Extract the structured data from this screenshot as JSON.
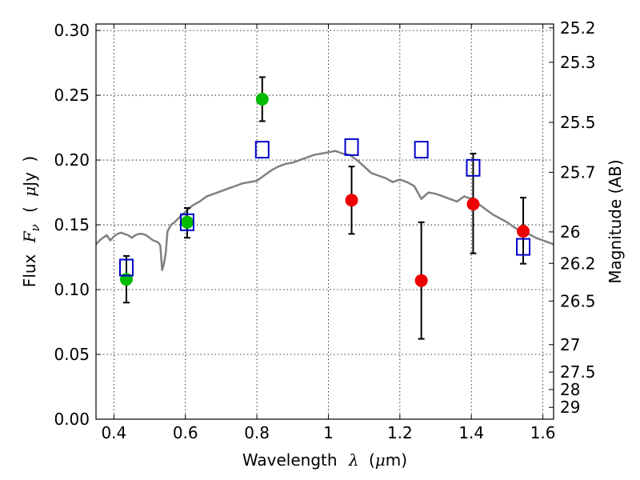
{
  "chart_data": {
    "type": "scatter",
    "xlabel": "Wavelength  λ (μm)",
    "ylabel": "Flux  F ν ( μJy )",
    "ylabel_parts": {
      "prefix": "Flux",
      "symbol": "F",
      "subscript": "ν",
      "open": "(",
      "mu": "μ",
      "unit": "Jy",
      "close": ")"
    },
    "xlabel_parts": {
      "prefix": "Wavelength",
      "symbol": "λ",
      "open": "(",
      "mu": "μ",
      "unit": "m)"
    },
    "y2label": "Magnitude (AB)",
    "xlim": [
      0.35,
      1.63
    ],
    "ylim": [
      0.0,
      0.305
    ],
    "grid": true,
    "x_ticks": [
      0.4,
      0.6,
      0.8,
      1.0,
      1.2,
      1.4,
      1.6
    ],
    "x_tick_labels": [
      "0.4",
      "0.6",
      "0.8",
      "1",
      "1.2",
      "1.4",
      "1.6"
    ],
    "y_ticks": [
      0.0,
      0.05,
      0.1,
      0.15,
      0.2,
      0.25,
      0.3
    ],
    "y_tick_labels": [
      "0.00",
      "0.05",
      "0.10",
      "0.15",
      "0.20",
      "0.25",
      "0.30"
    ],
    "right_ticks": [
      {
        "label": "25.2",
        "mag": 25.2
      },
      {
        "label": "25.3",
        "mag": 25.3
      },
      {
        "label": "25.5",
        "mag": 25.5
      },
      {
        "label": "25.7",
        "mag": 25.7
      },
      {
        "label": "26",
        "mag": 26.0
      },
      {
        "label": "26.2",
        "mag": 26.2
      },
      {
        "label": "26.5",
        "mag": 26.5
      },
      {
        "label": "27",
        "mag": 27.0
      },
      {
        "label": "27.5",
        "mag": 27.5
      },
      {
        "label": "28",
        "mag": 28.0
      },
      {
        "label": "29",
        "mag": 29.0
      }
    ],
    "colors": {
      "model": "#808080",
      "observed_optical": "#00bb00",
      "observed_nir": "#ee0000",
      "model_photometry": "#0000cc",
      "errorbar": "#000000"
    },
    "series": [
      {
        "type": "line",
        "color": "#808080",
        "x": [
          0.35,
          0.36,
          0.37,
          0.38,
          0.39,
          0.4,
          0.41,
          0.42,
          0.43,
          0.44,
          0.45,
          0.46,
          0.47,
          0.48,
          0.49,
          0.5,
          0.51,
          0.52,
          0.525,
          0.53,
          0.535,
          0.54,
          0.545,
          0.55,
          0.56,
          0.57,
          0.58,
          0.6,
          0.62,
          0.64,
          0.66,
          0.68,
          0.7,
          0.72,
          0.74,
          0.76,
          0.78,
          0.8,
          0.82,
          0.84,
          0.86,
          0.88,
          0.9,
          0.92,
          0.94,
          0.96,
          0.98,
          1.0,
          1.02,
          1.04,
          1.06,
          1.08,
          1.1,
          1.12,
          1.14,
          1.16,
          1.18,
          1.2,
          1.22,
          1.24,
          1.26,
          1.28,
          1.3,
          1.32,
          1.34,
          1.36,
          1.38,
          1.4,
          1.42,
          1.44,
          1.46,
          1.48,
          1.5,
          1.52,
          1.54,
          1.56,
          1.58,
          1.6,
          1.63
        ],
        "y": [
          0.135,
          0.138,
          0.14,
          0.142,
          0.138,
          0.141,
          0.143,
          0.144,
          0.143,
          0.142,
          0.14,
          0.142,
          0.143,
          0.143,
          0.142,
          0.14,
          0.138,
          0.137,
          0.136,
          0.134,
          0.115,
          0.12,
          0.128,
          0.145,
          0.15,
          0.152,
          0.155,
          0.16,
          0.165,
          0.168,
          0.172,
          0.174,
          0.176,
          0.178,
          0.18,
          0.182,
          0.183,
          0.184,
          0.188,
          0.192,
          0.195,
          0.197,
          0.198,
          0.2,
          0.202,
          0.204,
          0.205,
          0.206,
          0.207,
          0.205,
          0.204,
          0.2,
          0.195,
          0.19,
          0.188,
          0.186,
          0.183,
          0.185,
          0.183,
          0.18,
          0.17,
          0.175,
          0.174,
          0.172,
          0.17,
          0.168,
          0.172,
          0.17,
          0.166,
          0.162,
          0.158,
          0.155,
          0.152,
          0.148,
          0.145,
          0.143,
          0.14,
          0.138,
          0.135
        ]
      },
      {
        "type": "scatter",
        "color": "#00bb00",
        "x": [
          0.435,
          0.605,
          0.815
        ],
        "y": [
          0.108,
          0.152,
          0.247
        ],
        "yerr_low": [
          0.09,
          0.14,
          0.23
        ],
        "yerr_high": [
          0.126,
          0.163,
          0.264
        ]
      },
      {
        "type": "scatter",
        "color": "#ee0000",
        "x": [
          1.065,
          1.26,
          1.405,
          1.545
        ],
        "y": [
          0.169,
          0.107,
          0.166,
          0.145
        ],
        "yerr_low": [
          0.143,
          0.062,
          0.128,
          0.12
        ],
        "yerr_high": [
          0.195,
          0.152,
          0.205,
          0.171
        ]
      },
      {
        "type": "scatter",
        "color": "#0000cc",
        "x": [
          0.435,
          0.605,
          0.815,
          1.065,
          1.26,
          1.405,
          1.545
        ],
        "y": [
          0.117,
          0.152,
          0.208,
          0.21,
          0.208,
          0.194,
          0.133
        ]
      }
    ]
  }
}
